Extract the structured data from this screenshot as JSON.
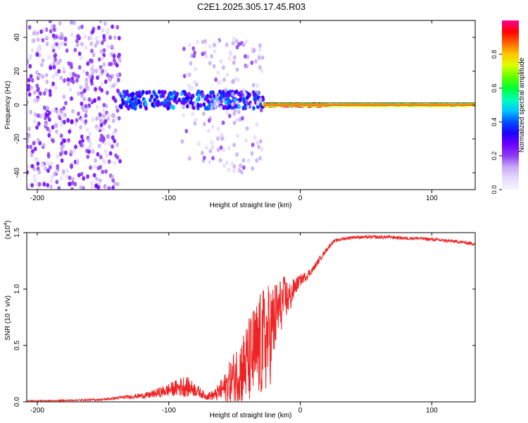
{
  "figure": {
    "title": "C2E1.2025.305.17.45.R03"
  },
  "chart_data": [
    {
      "type": "heatmap",
      "name": "spectrogram",
      "xlabel": "Height of straight line (km)",
      "ylabel": "Frequency (Hz)",
      "xlim": [
        -208,
        133
      ],
      "ylim": [
        -50,
        50
      ],
      "x_ticks": [
        -200,
        -100,
        0,
        100
      ],
      "y_ticks": [
        40,
        20,
        0,
        -20,
        -40
      ],
      "grid": false,
      "colorbar": {
        "label": "Normalized spectral amplitude",
        "ticks": [
          0.0,
          0.2,
          0.4,
          0.6,
          0.8
        ],
        "range": [
          0,
          1
        ],
        "colors": [
          "#f4f4ff",
          "#e6dcff",
          "#c8aaf5",
          "#8c3cf0",
          "#6e00ff",
          "#1e00ff",
          "#0050ff",
          "#00c8ff",
          "#00ffb4",
          "#00ff32",
          "#64ff00",
          "#dcff00",
          "#ffc800",
          "#ff6400",
          "#ff0000",
          "#ff0096"
        ]
      },
      "regions": [
        {
          "x": [
            -208,
            -137
          ],
          "freq_range": [
            -50,
            50
          ],
          "amplitude": [
            0.05,
            0.28
          ],
          "density": 0.75,
          "description": "broad noise"
        },
        {
          "x": [
            -137,
            -28
          ],
          "freq_center": 3,
          "freq_spread": 5,
          "amplitude": [
            0.25,
            0.45
          ],
          "density": 0.9
        },
        {
          "x": [
            -90,
            -28
          ],
          "freq_range": [
            -40,
            40
          ],
          "amplitude": [
            0.03,
            0.2
          ],
          "density": 0.3
        },
        {
          "x": [
            -28,
            20
          ],
          "freq_center": 0,
          "freq_spread": 1,
          "amplitude": [
            0.9,
            1.0
          ],
          "density": 1.0
        },
        {
          "x": [
            -28,
            133
          ],
          "freq_center": 0,
          "freq_spread": 0.6,
          "amplitude": [
            0.55,
            0.85
          ],
          "density": 1.0
        }
      ]
    },
    {
      "type": "line",
      "name": "snr",
      "xlabel": "Height of straight line (km)",
      "ylabel": "SNR (10 * v/v)",
      "y_multiplier": "(x10",
      "y_multiplier_exp": "4",
      "y_multiplier_close": ")",
      "xlim": [
        -208,
        133
      ],
      "ylim": [
        0,
        1.5
      ],
      "x_ticks": [
        -200,
        -100,
        0,
        100
      ],
      "y_ticks": [
        0.0,
        0.5,
        1.0,
        1.5
      ],
      "y_tick_labels": [
        "0.0",
        "0.5",
        "1.0",
        "1.5"
      ],
      "series": [
        {
          "name": "SNR",
          "color": "#ee2222",
          "x": [
            -208,
            -190,
            -170,
            -150,
            -135,
            -125,
            -115,
            -105,
            -95,
            -88,
            -80,
            -72,
            -65,
            -58,
            -50,
            -42,
            -35,
            -28,
            -22,
            -18,
            -12,
            -8,
            -4,
            0,
            5,
            10,
            15,
            20,
            25,
            30,
            35,
            40,
            50,
            60,
            70,
            80,
            90,
            100,
            110,
            120,
            133
          ],
          "y": [
            0.01,
            0.01,
            0.015,
            0.02,
            0.04,
            0.05,
            0.06,
            0.09,
            0.12,
            0.14,
            0.11,
            0.05,
            0.06,
            0.12,
            0.22,
            0.32,
            0.42,
            0.52,
            0.62,
            0.78,
            0.92,
            0.92,
            1.02,
            1.08,
            1.12,
            1.18,
            1.27,
            1.35,
            1.42,
            1.44,
            1.45,
            1.46,
            1.46,
            1.46,
            1.46,
            1.45,
            1.45,
            1.44,
            1.43,
            1.42,
            1.4
          ],
          "noise_amplitude": [
            0.005,
            0.005,
            0.006,
            0.01,
            0.015,
            0.02,
            0.03,
            0.05,
            0.07,
            0.1,
            0.06,
            0.03,
            0.05,
            0.12,
            0.25,
            0.35,
            0.45,
            0.5,
            0.45,
            0.3,
            0.2,
            0.15,
            0.08,
            0.05,
            0.04,
            0.03,
            0.025,
            0.02,
            0.015,
            0.015,
            0.015,
            0.015,
            0.015,
            0.015,
            0.015,
            0.015,
            0.015,
            0.015,
            0.015,
            0.015,
            0.015
          ]
        }
      ]
    }
  ]
}
